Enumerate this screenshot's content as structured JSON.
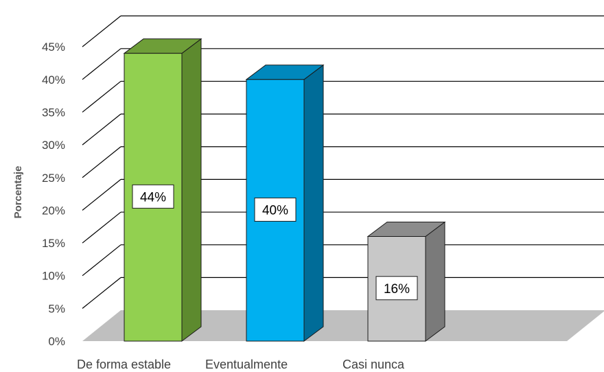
{
  "chart_data": {
    "type": "bar",
    "style": "3d-column",
    "categories": [
      "De forma estable",
      "Eventualmente",
      "Casi nunca"
    ],
    "values": [
      44,
      40,
      16
    ],
    "data_labels": [
      "44%",
      "40%",
      "16%"
    ],
    "ylabel": "Porcentaje",
    "xlabel": "",
    "ylim": [
      0,
      45
    ],
    "ytick_values": [
      0,
      5,
      10,
      15,
      20,
      25,
      30,
      35,
      40,
      45
    ],
    "ytick_labels": [
      "0%",
      "5%",
      "10%",
      "15%",
      "20%",
      "25%",
      "30%",
      "35%",
      "40%",
      "45%"
    ],
    "grid": true,
    "legend": "none",
    "colors": {
      "bars": [
        {
          "front": "#92d050",
          "side": "#5d8a2e",
          "top": "#6e9e38"
        },
        {
          "front": "#00b0f0",
          "side": "#006c98",
          "top": "#0088bd"
        },
        {
          "front": "#c8c8c8",
          "side": "#7a7a7a",
          "top": "#8c8c8c"
        }
      ],
      "floor": "#bfbfbf",
      "grid": "#000000"
    }
  }
}
